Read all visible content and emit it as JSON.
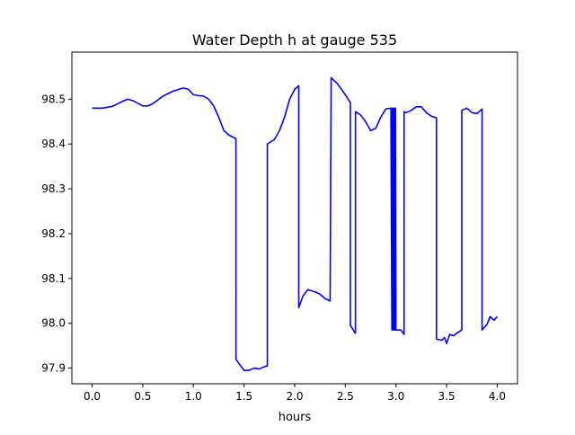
{
  "chart_data": {
    "type": "line",
    "title": "Water Depth h at gauge 535",
    "xlabel": "hours",
    "ylabel": "",
    "xlim": [
      -0.2,
      4.2
    ],
    "ylim": [
      97.865,
      98.605
    ],
    "xticks": [
      0.0,
      0.5,
      1.0,
      1.5,
      2.0,
      2.5,
      3.0,
      3.5,
      4.0
    ],
    "xtick_labels": [
      "0.0",
      "0.5",
      "1.0",
      "1.5",
      "2.0",
      "2.5",
      "3.0",
      "3.5",
      "4.0"
    ],
    "yticks": [
      97.9,
      98.0,
      98.1,
      98.2,
      98.3,
      98.4,
      98.5
    ],
    "ytick_labels": [
      "97.9",
      "98.0",
      "98.1",
      "98.2",
      "98.3",
      "98.4",
      "98.5"
    ],
    "grid": false,
    "line_color": "#0000ff",
    "series": [
      {
        "x": [
          0.0,
          0.1,
          0.2,
          0.3,
          0.35,
          0.4,
          0.5,
          0.55,
          0.6,
          0.7,
          0.8,
          0.9,
          0.95,
          1.0,
          1.05,
          1.1,
          1.15,
          1.2,
          1.25,
          1.3,
          1.35,
          1.42,
          1.42,
          1.45,
          1.5,
          1.55,
          1.6,
          1.65,
          1.7,
          1.73,
          1.73,
          1.8,
          1.85,
          1.9,
          1.95,
          2.0,
          2.04,
          2.04,
          2.08,
          2.13,
          2.2,
          2.25,
          2.3,
          2.35,
          2.36,
          2.42,
          2.5,
          2.55,
          2.55,
          2.58,
          2.59,
          2.6,
          2.6,
          2.65,
          2.7,
          2.75,
          2.8,
          2.85,
          2.9,
          2.95,
          2.96,
          2.965,
          2.97,
          2.975,
          2.98,
          2.985,
          2.99,
          2.995,
          3.0,
          3.05,
          3.08,
          3.08,
          3.1,
          3.15,
          3.2,
          3.25,
          3.3,
          3.35,
          3.4,
          3.4,
          3.45,
          3.48,
          3.5,
          3.53,
          3.57,
          3.6,
          3.65,
          3.65,
          3.7,
          3.75,
          3.8,
          3.85,
          3.85,
          3.9,
          3.93,
          3.95,
          3.97,
          4.0
        ],
        "y": [
          98.48,
          98.48,
          98.484,
          98.495,
          98.5,
          98.497,
          98.485,
          98.485,
          98.49,
          98.507,
          98.518,
          98.525,
          98.522,
          98.51,
          98.508,
          98.507,
          98.5,
          98.485,
          98.46,
          98.43,
          98.42,
          98.412,
          97.92,
          97.91,
          97.895,
          97.895,
          97.9,
          97.898,
          97.903,
          97.905,
          98.4,
          98.41,
          98.43,
          98.46,
          98.5,
          98.522,
          98.53,
          98.035,
          98.06,
          98.075,
          98.07,
          98.065,
          98.055,
          98.05,
          98.548,
          98.535,
          98.51,
          98.492,
          97.995,
          97.985,
          97.98,
          97.978,
          98.472,
          98.465,
          98.45,
          98.43,
          98.435,
          98.46,
          98.478,
          98.48,
          97.985,
          98.48,
          97.985,
          98.48,
          97.985,
          98.48,
          97.985,
          98.48,
          97.985,
          97.985,
          97.975,
          98.472,
          98.47,
          98.475,
          98.483,
          98.483,
          98.47,
          98.462,
          98.458,
          97.965,
          97.962,
          97.968,
          97.955,
          97.975,
          97.972,
          97.978,
          97.985,
          98.475,
          98.48,
          98.47,
          98.468,
          98.478,
          97.985,
          97.998,
          98.015,
          98.01,
          98.007,
          98.015
        ]
      }
    ]
  }
}
